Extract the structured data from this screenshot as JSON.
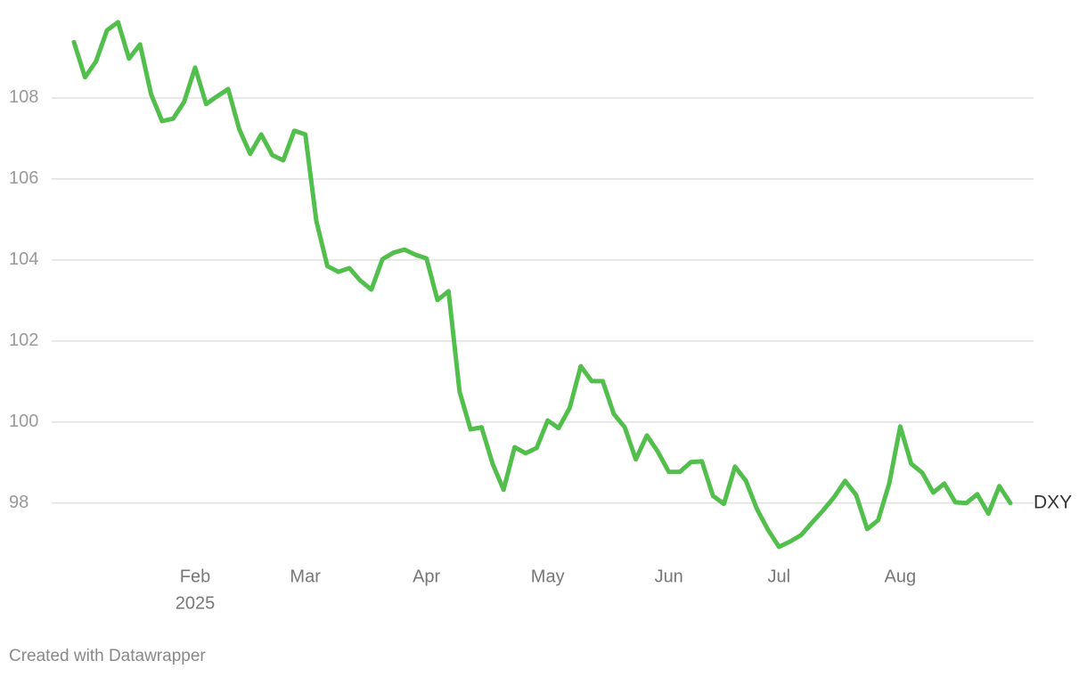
{
  "chart_data": {
    "type": "line",
    "categories": [
      null,
      null,
      null,
      null,
      null,
      null,
      null,
      null,
      null,
      null,
      null,
      "Feb",
      null,
      null,
      null,
      null,
      null,
      null,
      null,
      null,
      null,
      "Mar",
      null,
      null,
      null,
      null,
      null,
      null,
      null,
      null,
      null,
      null,
      "Apr",
      null,
      null,
      null,
      null,
      null,
      null,
      null,
      null,
      null,
      null,
      "May",
      null,
      null,
      null,
      null,
      null,
      null,
      null,
      null,
      null,
      null,
      "Jun",
      null,
      null,
      null,
      null,
      null,
      null,
      null,
      null,
      null,
      "Jul",
      null,
      null,
      null,
      null,
      null,
      null,
      null,
      null,
      null,
      null,
      "Aug",
      null,
      null,
      null,
      null,
      null,
      null,
      null,
      null,
      null,
      null
    ],
    "year_label": "2025",
    "series": [
      {
        "name": "DXY",
        "color": "#52bf4c",
        "values": [
          109.38,
          108.51,
          108.9,
          109.67,
          109.87,
          108.97,
          109.32,
          108.09,
          107.43,
          107.49,
          107.9,
          108.75,
          107.85,
          108.04,
          108.22,
          107.23,
          106.62,
          107.1,
          106.59,
          106.46,
          107.19,
          107.1,
          104.97,
          103.85,
          103.71,
          103.8,
          103.49,
          103.27,
          104.02,
          104.18,
          104.26,
          104.13,
          104.04,
          103.01,
          103.23,
          100.75,
          99.82,
          99.87,
          98.97,
          98.33,
          99.38,
          99.23,
          99.36,
          100.04,
          99.85,
          100.35,
          101.38,
          101.01,
          101.01,
          100.2,
          99.87,
          99.08,
          99.67,
          99.27,
          98.77,
          98.77,
          99.01,
          99.03,
          98.18,
          97.98,
          98.9,
          98.55,
          97.85,
          97.34,
          96.92,
          97.05,
          97.21,
          97.52,
          97.82,
          98.15,
          98.55,
          98.2,
          97.36,
          97.58,
          98.48,
          99.89,
          98.97,
          98.75,
          98.26,
          98.48,
          98.02,
          98.0,
          98.22,
          97.74,
          98.42,
          98.0
        ]
      }
    ],
    "ylim": [
      96.5,
      110
    ],
    "yticks": [
      98,
      100,
      102,
      104,
      106,
      108
    ],
    "grid": true,
    "footer": "Created with Datawrapper"
  }
}
